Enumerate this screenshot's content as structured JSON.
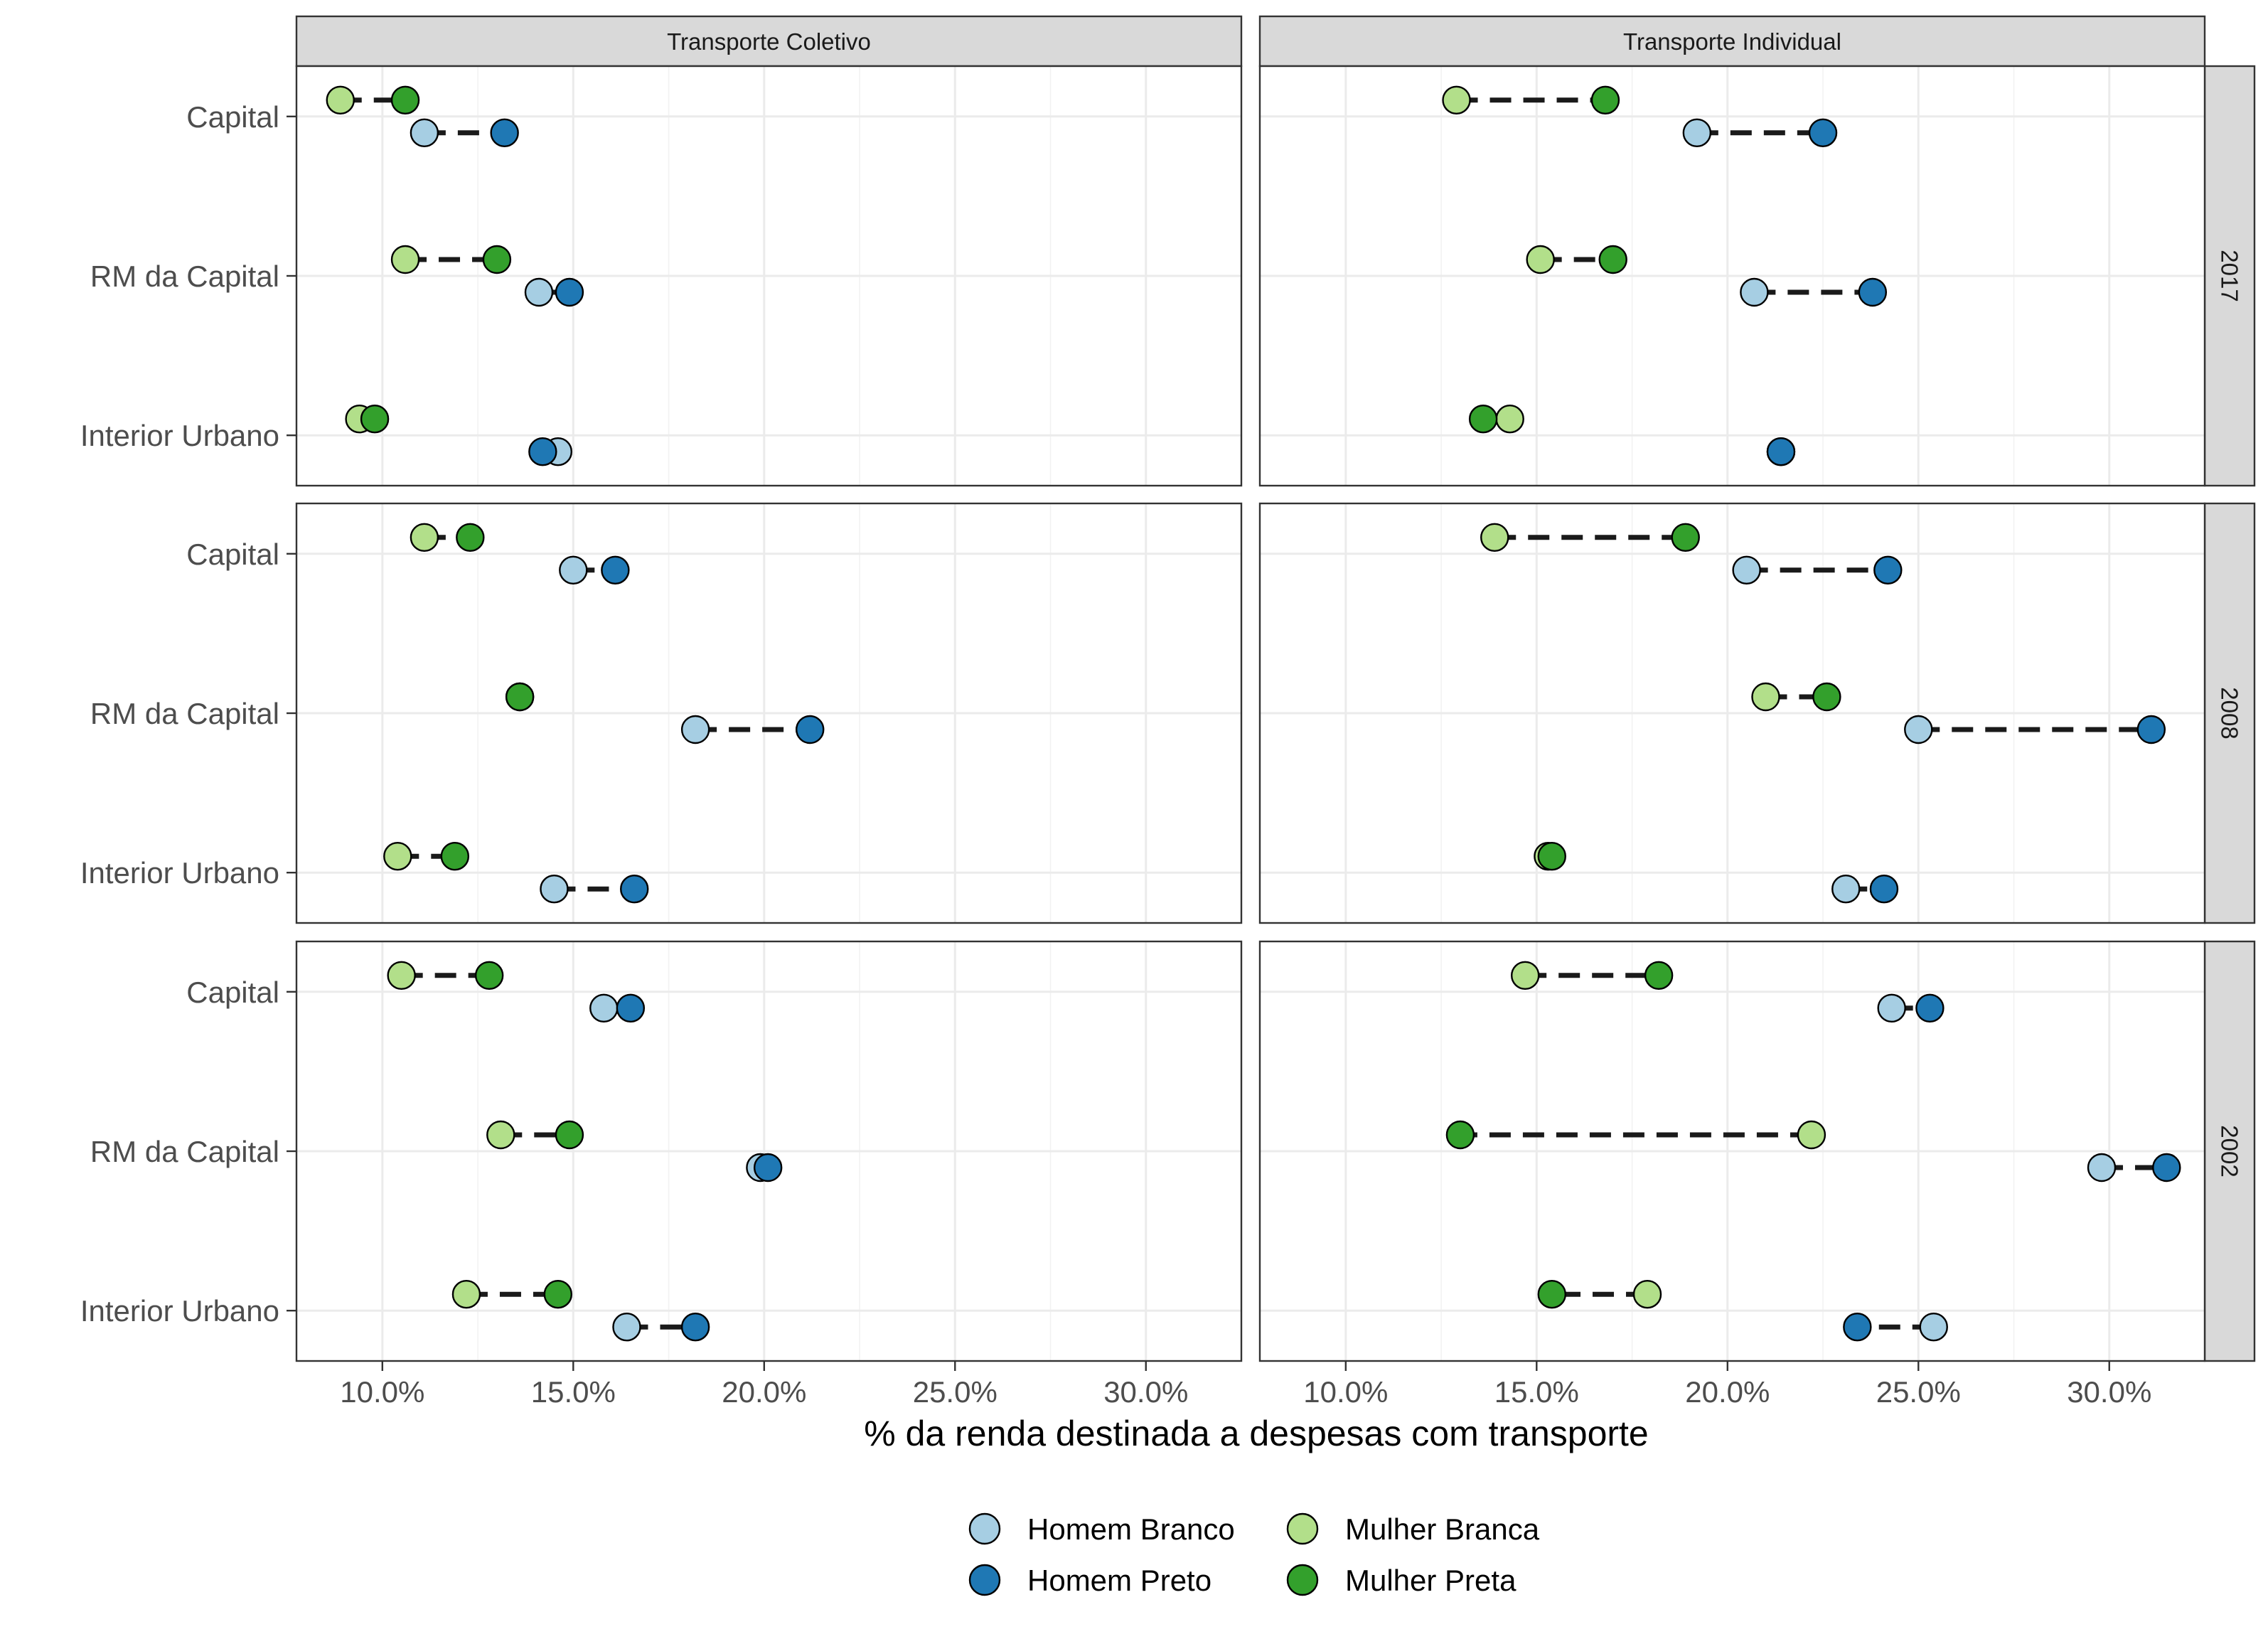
{
  "chart_data": {
    "type": "scatter",
    "subtype": "faceted dumbbell",
    "xlabel": "% da renda destinada a despesas com transporte",
    "ylabel": "",
    "xlim": [
      7.75,
      32.5
    ],
    "x_ticks": [
      10,
      15,
      20,
      25,
      30
    ],
    "x_tick_labels": [
      "10.0%",
      "15.0%",
      "20.0%",
      "25.0%",
      "30.0%"
    ],
    "grid": true,
    "legend_position": "bottom",
    "columns": [
      "Transporte Coletivo",
      "Transporte Individual"
    ],
    "rows": [
      "2017",
      "2008",
      "2002"
    ],
    "categories": [
      "Capital",
      "RM da Capital",
      "Interior Urbano"
    ],
    "series": [
      {
        "name": "Homem Branco",
        "color": "#a6cee3"
      },
      {
        "name": "Homem Preto",
        "color": "#1f78b4"
      },
      {
        "name": "Mulher Branca",
        "color": "#b2df8a"
      },
      {
        "name": "Mulher Preta",
        "color": "#33a02c"
      }
    ],
    "panels": [
      {
        "column": "Transporte Coletivo",
        "row": "2017",
        "points": [
          {
            "category": "Capital",
            "mulher_branca": 8.9,
            "mulher_preta": 10.6,
            "homem_branco": 11.1,
            "homem_preto": 13.2
          },
          {
            "category": "RM da Capital",
            "mulher_branca": 10.6,
            "mulher_preta": 13.0,
            "homem_branco": 14.1,
            "homem_preto": 14.9
          },
          {
            "category": "Interior Urbano",
            "mulher_branca": 9.4,
            "mulher_preta": 9.8,
            "homem_branco": 14.6,
            "homem_preto": 14.2
          }
        ]
      },
      {
        "column": "Transporte Individual",
        "row": "2017",
        "points": [
          {
            "category": "Capital",
            "mulher_branca": 12.9,
            "mulher_preta": 16.8,
            "homem_branco": 19.2,
            "homem_preto": 22.5
          },
          {
            "category": "RM da Capital",
            "mulher_branca": 15.1,
            "mulher_preta": 17.0,
            "homem_branco": 20.7,
            "homem_preto": 23.8
          },
          {
            "category": "Interior Urbano",
            "mulher_branca": 14.3,
            "mulher_preta": 13.6,
            "homem_branco": 21.4,
            "homem_preto": 21.4
          }
        ]
      },
      {
        "column": "Transporte Coletivo",
        "row": "2008",
        "points": [
          {
            "category": "Capital",
            "mulher_branca": 11.1,
            "mulher_preta": 12.3,
            "homem_branco": 15.0,
            "homem_preto": 16.1
          },
          {
            "category": "RM da Capital",
            "mulher_branca": 13.6,
            "mulher_preta": 13.6,
            "homem_branco": 18.2,
            "homem_preto": 21.2
          },
          {
            "category": "Interior Urbano",
            "mulher_branca": 10.4,
            "mulher_preta": 11.9,
            "homem_branco": 14.5,
            "homem_preto": 16.6
          }
        ]
      },
      {
        "column": "Transporte Individual",
        "row": "2008",
        "points": [
          {
            "category": "Capital",
            "mulher_branca": 13.9,
            "mulher_preta": 18.9,
            "homem_branco": 20.5,
            "homem_preto": 24.2
          },
          {
            "category": "RM da Capital",
            "mulher_branca": 21.0,
            "mulher_preta": 22.6,
            "homem_branco": 25.0,
            "homem_preto": 31.1
          },
          {
            "category": "Interior Urbano",
            "mulher_branca": 15.3,
            "mulher_preta": 15.4,
            "homem_branco": 23.1,
            "homem_preto": 24.1
          }
        ]
      },
      {
        "column": "Transporte Coletivo",
        "row": "2002",
        "points": [
          {
            "category": "Capital",
            "mulher_branca": 10.5,
            "mulher_preta": 12.8,
            "homem_branco": 15.8,
            "homem_preto": 16.5
          },
          {
            "category": "RM da Capital",
            "mulher_branca": 13.1,
            "mulher_preta": 14.9,
            "homem_branco": 19.9,
            "homem_preto": 20.1
          },
          {
            "category": "Interior Urbano",
            "mulher_branca": 12.2,
            "mulher_preta": 14.6,
            "homem_branco": 16.4,
            "homem_preto": 18.2
          }
        ]
      },
      {
        "column": "Transporte Individual",
        "row": "2002",
        "points": [
          {
            "category": "Capital",
            "mulher_branca": 14.7,
            "mulher_preta": 18.2,
            "homem_branco": 24.3,
            "homem_preto": 25.3
          },
          {
            "category": "RM da Capital",
            "mulher_branca": 22.2,
            "mulher_preta": 13.0,
            "homem_branco": 29.8,
            "homem_preto": 31.5
          },
          {
            "category": "Interior Urbano",
            "mulher_branca": 17.9,
            "mulher_preta": 15.4,
            "homem_branco": 25.4,
            "homem_preto": 23.4
          }
        ]
      }
    ]
  }
}
